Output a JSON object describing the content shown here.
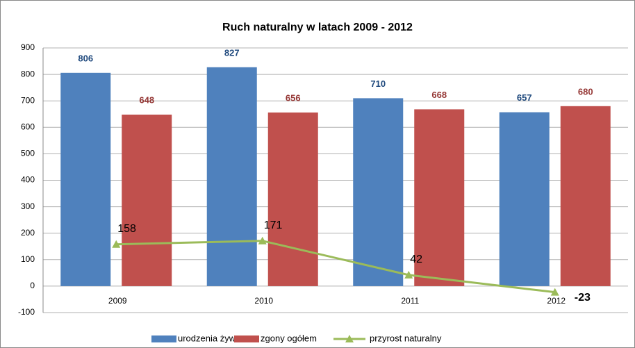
{
  "chart_data": {
    "type": "bar",
    "title": "Ruch naturalny w latach 2009 - 2012",
    "categories": [
      "2009",
      "2010",
      "2011",
      "2012"
    ],
    "series": [
      {
        "name": "urodzenia żywe",
        "color": "#4f81bd",
        "label_color": "#1f497d",
        "values": [
          806,
          827,
          710,
          657
        ]
      },
      {
        "name": "zgony ogółem",
        "color": "#c0504d",
        "label_color": "#953735",
        "values": [
          648,
          656,
          668,
          680
        ]
      },
      {
        "name": "przyrost naturalny",
        "type": "line",
        "color": "#9bbb59",
        "label_color": "#000000",
        "values": [
          158,
          171,
          42,
          -23
        ]
      }
    ],
    "ylim": [
      -100,
      900
    ],
    "yticks": [
      -100,
      0,
      100,
      200,
      300,
      400,
      500,
      600,
      700,
      800,
      900
    ],
    "grid": true,
    "legend": "bottom"
  }
}
